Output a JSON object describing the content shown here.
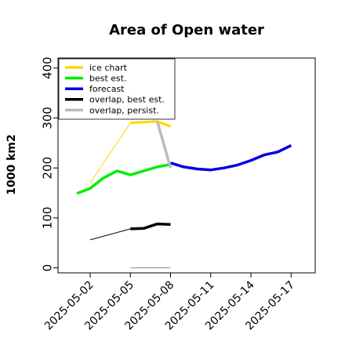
{
  "chart_data": {
    "type": "line",
    "title": "Area of Open water",
    "xlabel": "",
    "ylabel": "1000 km2",
    "ylim": [
      -10,
      420
    ],
    "yticks": [
      0,
      100,
      200,
      300,
      400
    ],
    "xlim": [
      -0.8,
      5.6
    ],
    "xtick_labels": [
      "2025-05-02",
      "2025-05-05",
      "2025-05-08",
      "2025-05-11",
      "2025-05-14",
      "2025-05-17"
    ],
    "xtick_positions": [
      0,
      1,
      2,
      3,
      4,
      5
    ],
    "xtick_highlight": "2025-05-08",
    "highlight_color": "#228B22",
    "grid": false,
    "legend_position": "top-left",
    "legend": [
      "ice chart",
      "best est.",
      "forecast",
      "overlap, best est.",
      "overlap, persist."
    ],
    "series": [
      {
        "name": "ice chart",
        "color": "#FFD700",
        "width": 1,
        "x": [
          0,
          1,
          1.67,
          2
        ],
        "y": [
          170,
          290,
          293,
          283
        ]
      },
      {
        "name": "ice chart",
        "color": "#FFD700",
        "width": 3,
        "x": [
          1,
          1.67,
          2
        ],
        "y": [
          290,
          293,
          283
        ]
      },
      {
        "name": "best est.",
        "color": "#00EE00",
        "width": 3.5,
        "x": [
          -0.33,
          0,
          0.33,
          0.67,
          1,
          1.33,
          1.67,
          2
        ],
        "y": [
          149,
          159,
          180,
          194,
          186,
          194,
          202,
          207
        ]
      },
      {
        "name": "forecast",
        "color": "#0000DD",
        "width": 3.5,
        "x": [
          2,
          2.33,
          2.67,
          3,
          3.33,
          3.67,
          4,
          4.33,
          4.67,
          5
        ],
        "y": [
          210,
          202,
          198,
          196,
          200,
          206,
          215,
          226,
          232,
          245
        ]
      },
      {
        "name": "overlap, best est.",
        "color": "#000000",
        "width": 1,
        "x": [
          0,
          1
        ],
        "y": [
          56,
          78
        ]
      },
      {
        "name": "overlap, best est.",
        "color": "#000000",
        "width": 3.5,
        "x": [
          1,
          1.33,
          1.67,
          2
        ],
        "y": [
          78,
          79,
          88,
          87
        ]
      },
      {
        "name": "overlap, persist.",
        "color": "#BBBBBB",
        "width": 3.5,
        "x": [
          1.67,
          2
        ],
        "y": [
          293,
          200
        ]
      },
      {
        "name": "overlap, persist.",
        "color": "#888888",
        "width": 1,
        "x": [
          1,
          2
        ],
        "y": [
          0,
          0
        ]
      }
    ]
  }
}
